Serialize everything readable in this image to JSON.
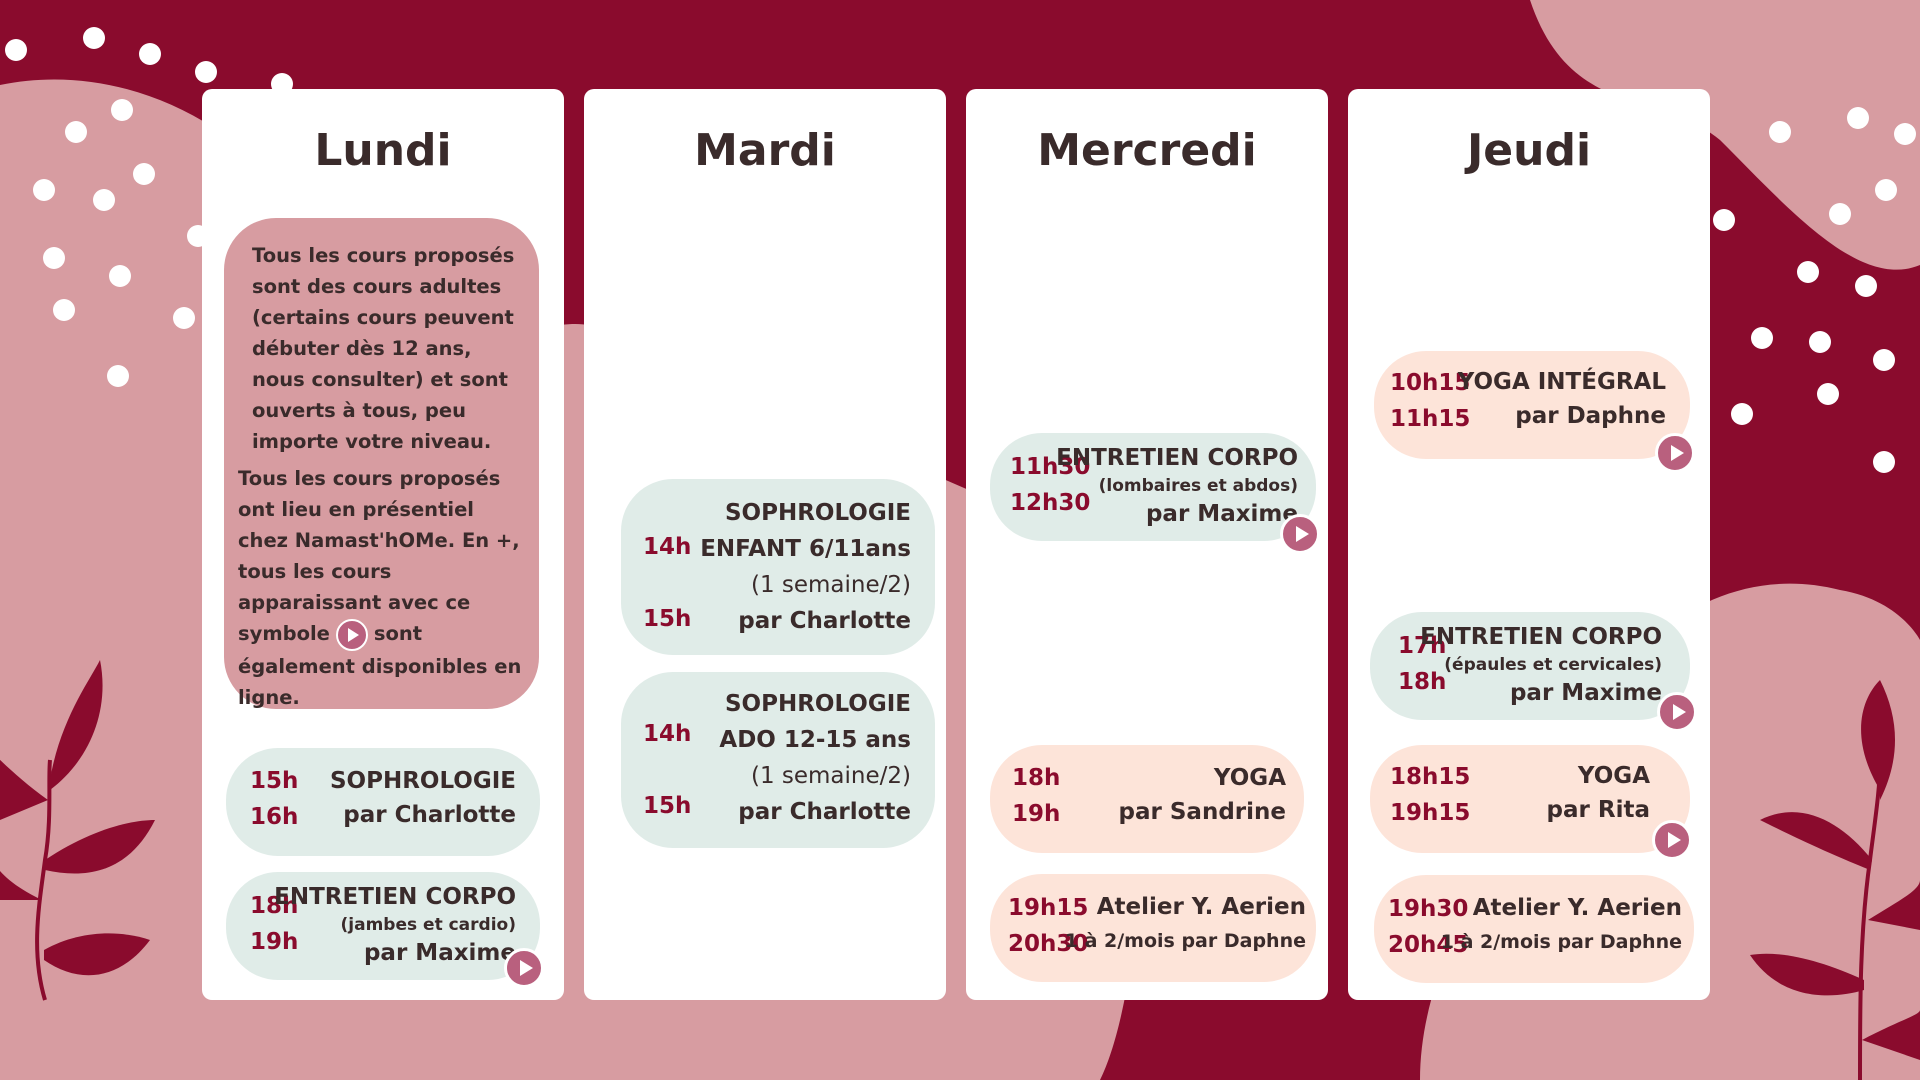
{
  "days": [
    {
      "name": "Lundi"
    },
    {
      "name": "Mardi"
    },
    {
      "name": "Mercredi"
    },
    {
      "name": "Jeudi"
    }
  ],
  "info": {
    "p1": "Tous les cours proposés sont des cours adultes (certains cours peuvent débuter dès 12 ans, nous consulter) et sont ouverts à tous, peu importe votre niveau.",
    "p2_before": "Tous les cours proposés ont lieu en présentiel chez Namast'hOMe. En +, tous les cours apparaissant avec ce symbole",
    "p2_after": "sont également disponibles en ligne."
  },
  "classes": {
    "lundi_1": {
      "start": "15h",
      "end": "16h",
      "name": "SOPHROLOGIE",
      "by": "par Charlotte"
    },
    "lundi_2": {
      "start": "18h",
      "end": "19h",
      "name": "ENTRETIEN CORPO",
      "sub": "(jambes et cardio)",
      "by": "par Maxime",
      "online": true
    },
    "mardi_1": {
      "start": "14h",
      "end": "15h",
      "name": "SOPHROLOGIE",
      "name2": "ENFANT 6/11ans",
      "name3": "(1 semaine/2)",
      "by": "par Charlotte"
    },
    "mardi_2": {
      "start": "14h",
      "end": "15h",
      "name": "SOPHROLOGIE",
      "name2": "ADO 12-15 ans",
      "name3": "(1 semaine/2)",
      "by": "par Charlotte"
    },
    "mercredi_1": {
      "start": "11h30",
      "end": "12h30",
      "name": "ENTRETIEN CORPO",
      "sub": "(lombaires et abdos)",
      "by": "par Maxime",
      "online": true
    },
    "mercredi_2": {
      "start": "18h",
      "end": "19h",
      "name": "YOGA",
      "by": "par Sandrine"
    },
    "mercredi_3": {
      "start": "19h15",
      "end": "20h30",
      "name": "Atelier Y. Aerien",
      "by": "1 à 2/mois par Daphne"
    },
    "jeudi_1": {
      "start": "10h15",
      "end": "11h15",
      "name": "YOGA INTÉGRAL",
      "by": "par Daphne",
      "online": true
    },
    "jeudi_2": {
      "start": "17h",
      "end": "18h",
      "name": "ENTRETIEN CORPO",
      "sub": "(épaules et cervicales)",
      "by": "par Maxime",
      "online": true
    },
    "jeudi_3": {
      "start": "18h15",
      "end": "19h15",
      "name": "YOGA",
      "by": "par Rita",
      "online": true
    },
    "jeudi_4": {
      "start": "19h30",
      "end": "20h45",
      "name": "Atelier Y. Aerien",
      "by": "1 à 2/mois par Daphne"
    }
  },
  "icons": {
    "online": "play-icon",
    "leaf": "leaf-icon"
  },
  "colors": {
    "background": "#8a0b2d",
    "pink": "#d79ca1",
    "mint": "#e0ece8",
    "peach": "#fde4d9",
    "accent": "#b9607e",
    "time": "#8a0b2d"
  }
}
